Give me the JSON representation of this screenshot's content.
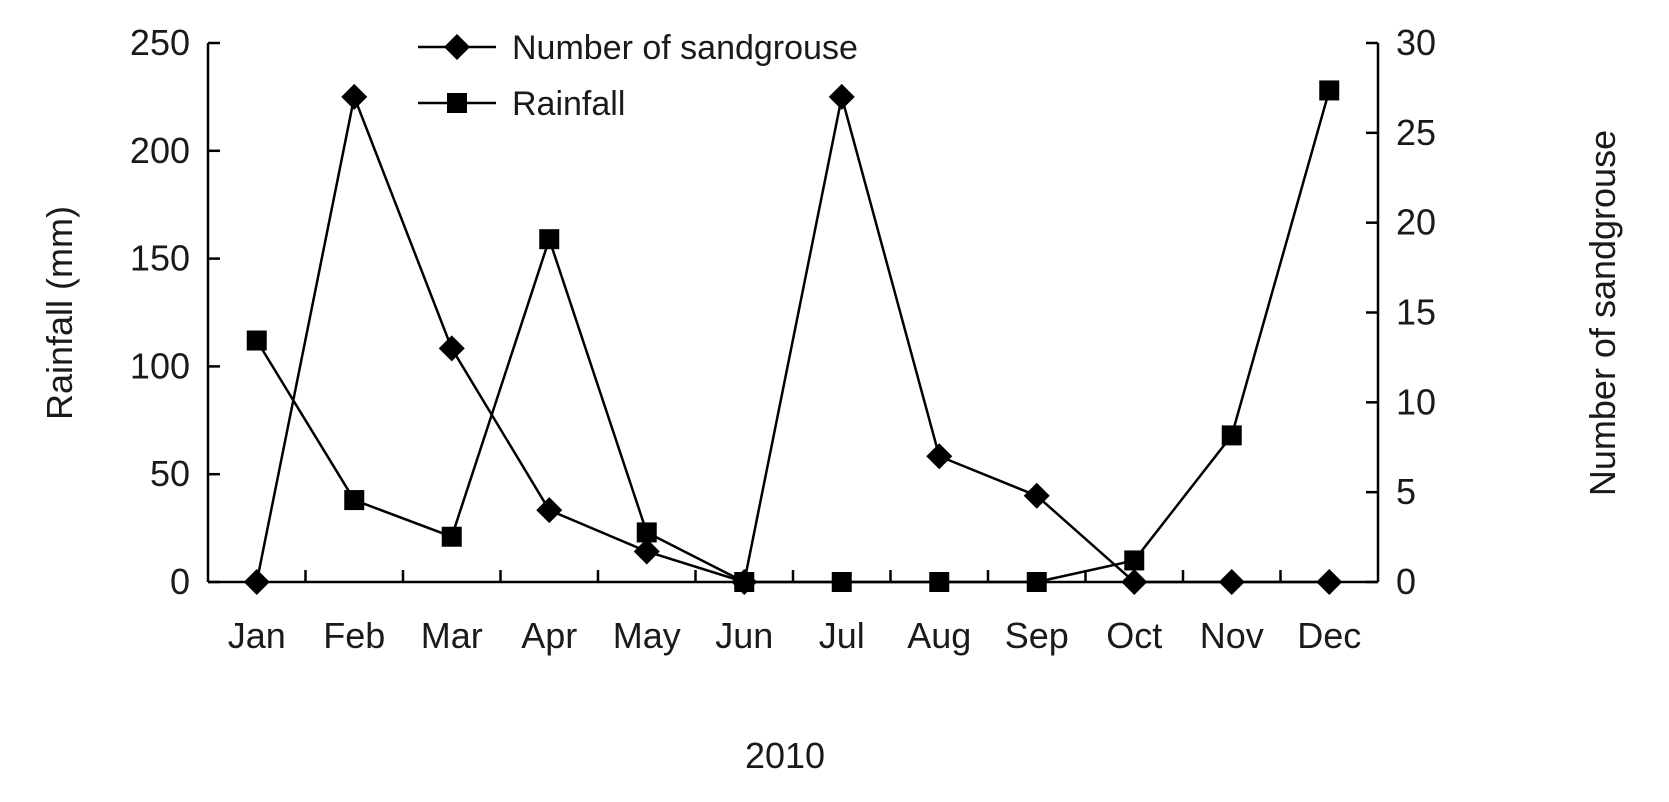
{
  "chart_data": {
    "type": "line",
    "categories": [
      "Jan",
      "Feb",
      "Mar",
      "Apr",
      "May",
      "Jun",
      "Jul",
      "Aug",
      "Sep",
      "Oct",
      "Nov",
      "Dec"
    ],
    "xlabel": "2010",
    "ylabel_left": "Rainfall (mm)",
    "ylabel_right": "Number of sandgrouse",
    "ylim_left": [
      0,
      250
    ],
    "yticks_left": [
      0,
      50,
      100,
      150,
      200,
      250
    ],
    "ylim_right": [
      0,
      30
    ],
    "yticks_right": [
      0,
      5,
      10,
      15,
      20,
      25,
      30
    ],
    "grid": false,
    "legend_position": "top-center",
    "series": [
      {
        "name": "Number of sandgrouse",
        "axis": "right",
        "marker": "diamond",
        "values": [
          0,
          27,
          13,
          4,
          1.7,
          0,
          27,
          7,
          4.8,
          0,
          0,
          0
        ]
      },
      {
        "name": "Rainfall",
        "axis": "left",
        "marker": "square",
        "values": [
          112,
          38,
          21,
          159,
          23,
          0,
          0,
          0,
          0,
          10,
          68,
          228
        ]
      }
    ]
  }
}
